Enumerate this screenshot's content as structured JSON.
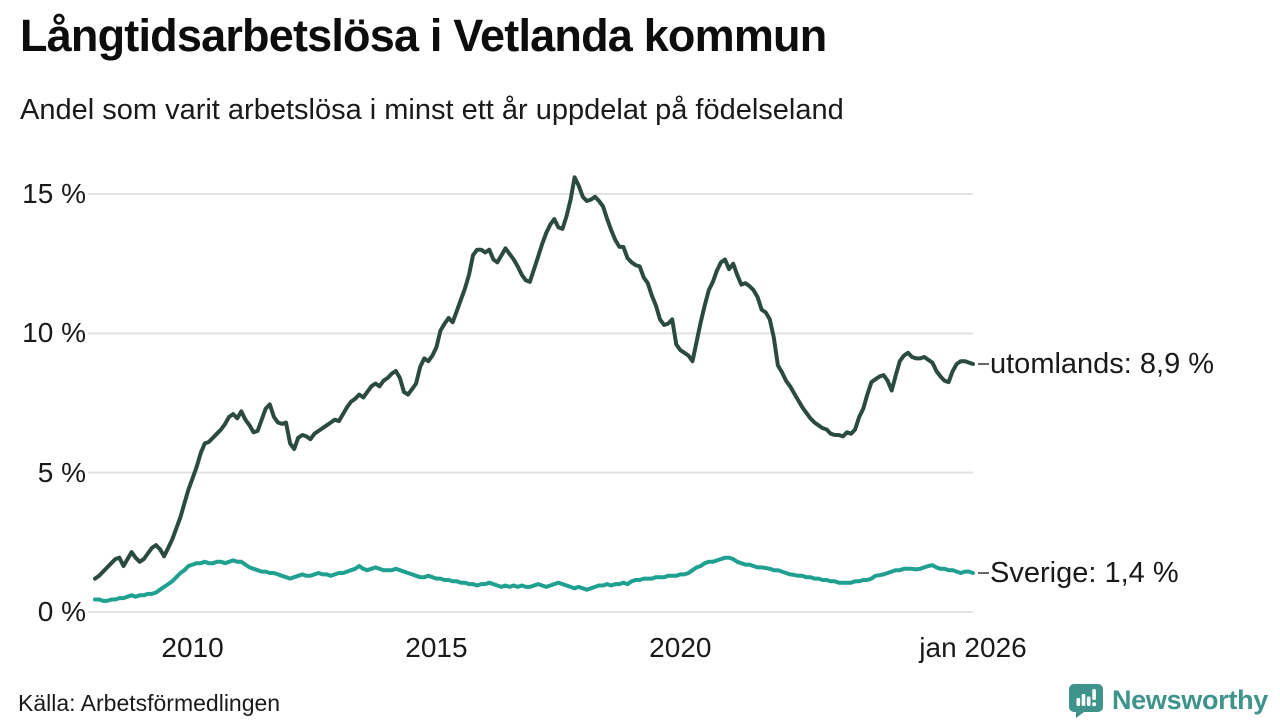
{
  "header": {
    "title": "Långtidsarbetslösa i Vetlanda kommun",
    "subtitle": "Andel som varit arbetslösa i minst ett år uppdelat på födelseland"
  },
  "footer": {
    "source": "Källa: Arbetsförmedlingen",
    "brand": "Newsworthy",
    "brand_color": "#3E938B",
    "brand_icon": "bar-chart-speech-bubble-icon"
  },
  "chart_data": {
    "type": "line",
    "title": "Långtidsarbetslösa i Vetlanda kommun",
    "subtitle": "Andel som varit arbetslösa i minst ett år uppdelat på födelseland",
    "x_unit": "month",
    "x_start": "2008-01",
    "x_end": "2026-01",
    "ylim": [
      0,
      16
    ],
    "grid": true,
    "grid_color": "#e2e2e2",
    "yticks": [
      {
        "label": "0 %",
        "value": 0
      },
      {
        "label": "5 %",
        "value": 5
      },
      {
        "label": "10 %",
        "value": 10
      },
      {
        "label": "15 %",
        "value": 15
      }
    ],
    "xticks": [
      {
        "label": "2010",
        "year": 2010
      },
      {
        "label": "2015",
        "year": 2015
      },
      {
        "label": "2020",
        "year": 2020
      },
      {
        "label": "jan 2026",
        "year": 2026
      }
    ],
    "series": [
      {
        "name": "utomlands",
        "end_label": "utomlands: 8,9 %",
        "last_value_label": "8,9 %",
        "color": "#2b4b40",
        "values": [
          1.2,
          1.3,
          1.45,
          1.6,
          1.75,
          1.9,
          1.95,
          1.65,
          1.9,
          2.15,
          1.95,
          1.8,
          1.9,
          2.1,
          2.3,
          2.4,
          2.25,
          2.0,
          2.3,
          2.6,
          3.0,
          3.4,
          3.9,
          4.4,
          4.8,
          5.2,
          5.7,
          6.05,
          6.1,
          6.25,
          6.4,
          6.55,
          6.75,
          7.0,
          7.1,
          6.95,
          7.2,
          6.9,
          6.7,
          6.45,
          6.5,
          6.9,
          7.3,
          7.45,
          7.0,
          6.8,
          6.75,
          6.8,
          6.05,
          5.85,
          6.25,
          6.35,
          6.3,
          6.2,
          6.4,
          6.5,
          6.6,
          6.7,
          6.8,
          6.9,
          6.85,
          7.1,
          7.35,
          7.55,
          7.65,
          7.8,
          7.7,
          7.9,
          8.1,
          8.2,
          8.1,
          8.3,
          8.4,
          8.55,
          8.65,
          8.4,
          7.9,
          7.8,
          8.0,
          8.2,
          8.8,
          9.1,
          9.0,
          9.2,
          9.5,
          10.1,
          10.35,
          10.55,
          10.4,
          10.8,
          11.2,
          11.6,
          12.1,
          12.8,
          13.0,
          13.0,
          12.9,
          13.0,
          12.65,
          12.55,
          12.8,
          13.05,
          12.85,
          12.65,
          12.4,
          12.1,
          11.9,
          11.85,
          12.3,
          12.75,
          13.2,
          13.6,
          13.9,
          14.1,
          13.8,
          13.75,
          14.2,
          14.8,
          15.6,
          15.3,
          14.9,
          14.75,
          14.8,
          14.9,
          14.75,
          14.55,
          14.1,
          13.7,
          13.35,
          13.1,
          13.1,
          12.7,
          12.55,
          12.45,
          12.4,
          12.0,
          11.8,
          11.35,
          11.0,
          10.5,
          10.3,
          10.35,
          10.5,
          9.6,
          9.4,
          9.3,
          9.2,
          9.0,
          9.7,
          10.4,
          11.0,
          11.55,
          11.85,
          12.25,
          12.55,
          12.65,
          12.3,
          12.5,
          12.1,
          11.75,
          11.8,
          11.7,
          11.55,
          11.3,
          10.85,
          10.75,
          10.5,
          9.85,
          8.85,
          8.6,
          8.3,
          8.1,
          7.85,
          7.6,
          7.35,
          7.15,
          6.95,
          6.8,
          6.7,
          6.6,
          6.55,
          6.4,
          6.35,
          6.35,
          6.3,
          6.45,
          6.4,
          6.55,
          7.0,
          7.3,
          7.8,
          8.25,
          8.35,
          8.45,
          8.5,
          8.3,
          7.95,
          8.5,
          9.0,
          9.2,
          9.3,
          9.15,
          9.1,
          9.1,
          9.15,
          9.05,
          8.95,
          8.65,
          8.45,
          8.3,
          8.25,
          8.65,
          8.9,
          9.0,
          9.0,
          8.95,
          8.9
        ]
      },
      {
        "name": "Sverige",
        "end_label": "Sverige: 1,4 %",
        "last_value_label": "1,4 %",
        "color": "#1fa091",
        "values": [
          0.45,
          0.45,
          0.4,
          0.4,
          0.45,
          0.45,
          0.5,
          0.5,
          0.55,
          0.6,
          0.55,
          0.6,
          0.6,
          0.65,
          0.65,
          0.7,
          0.8,
          0.9,
          1.0,
          1.1,
          1.25,
          1.4,
          1.5,
          1.65,
          1.7,
          1.75,
          1.75,
          1.8,
          1.75,
          1.75,
          1.8,
          1.8,
          1.75,
          1.8,
          1.85,
          1.8,
          1.8,
          1.7,
          1.6,
          1.55,
          1.5,
          1.45,
          1.45,
          1.4,
          1.4,
          1.35,
          1.3,
          1.25,
          1.2,
          1.25,
          1.3,
          1.35,
          1.3,
          1.3,
          1.35,
          1.4,
          1.35,
          1.35,
          1.3,
          1.35,
          1.4,
          1.4,
          1.45,
          1.5,
          1.55,
          1.65,
          1.55,
          1.5,
          1.55,
          1.6,
          1.55,
          1.5,
          1.5,
          1.5,
          1.55,
          1.5,
          1.45,
          1.4,
          1.35,
          1.3,
          1.25,
          1.25,
          1.3,
          1.25,
          1.2,
          1.2,
          1.15,
          1.15,
          1.1,
          1.1,
          1.05,
          1.05,
          1.0,
          1.0,
          0.95,
          1.0,
          1.0,
          1.05,
          1.0,
          0.95,
          0.9,
          0.95,
          0.9,
          0.95,
          0.9,
          0.95,
          0.9,
          0.9,
          0.95,
          1.0,
          0.95,
          0.9,
          0.95,
          1.0,
          1.05,
          1.0,
          0.95,
          0.9,
          0.85,
          0.9,
          0.85,
          0.8,
          0.85,
          0.9,
          0.95,
          0.95,
          1.0,
          0.95,
          1.0,
          1.0,
          1.05,
          1.0,
          1.1,
          1.15,
          1.15,
          1.2,
          1.2,
          1.2,
          1.25,
          1.25,
          1.25,
          1.3,
          1.3,
          1.3,
          1.35,
          1.35,
          1.4,
          1.5,
          1.6,
          1.65,
          1.75,
          1.8,
          1.8,
          1.85,
          1.9,
          1.95,
          1.95,
          1.9,
          1.8,
          1.75,
          1.7,
          1.7,
          1.65,
          1.6,
          1.6,
          1.58,
          1.55,
          1.5,
          1.5,
          1.45,
          1.4,
          1.35,
          1.33,
          1.3,
          1.3,
          1.25,
          1.25,
          1.2,
          1.2,
          1.15,
          1.15,
          1.1,
          1.1,
          1.05,
          1.05,
          1.05,
          1.05,
          1.1,
          1.1,
          1.15,
          1.15,
          1.2,
          1.3,
          1.32,
          1.35,
          1.4,
          1.45,
          1.5,
          1.5,
          1.55,
          1.55,
          1.55,
          1.53,
          1.55,
          1.6,
          1.65,
          1.68,
          1.6,
          1.55,
          1.55,
          1.5,
          1.5,
          1.45,
          1.4,
          1.45,
          1.45,
          1.4
        ]
      }
    ]
  }
}
